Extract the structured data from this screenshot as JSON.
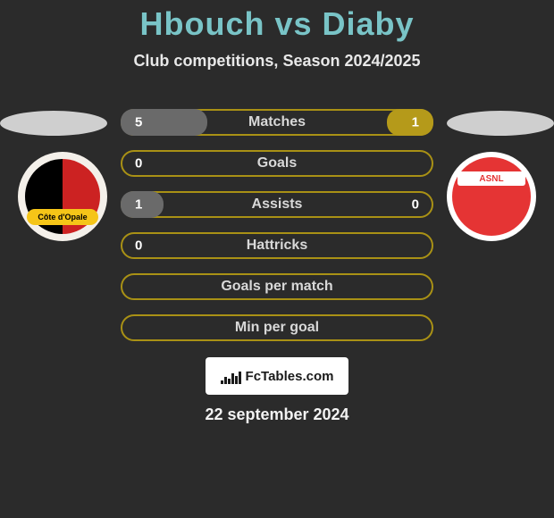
{
  "colors": {
    "background": "#2b2b2b",
    "title": "#79c4c7",
    "platform": "#cfcfcf",
    "row_border": "#a99115",
    "fill_left": "#6a6a6a",
    "fill_right": "#b59a1a"
  },
  "title": "Hbouch vs Diaby",
  "subtitle": "Club competitions, Season 2024/2025",
  "date": "22 september 2024",
  "badge": {
    "text": "FcTables.com",
    "spark_heights": [
      4,
      8,
      6,
      12,
      9,
      14
    ]
  },
  "crest_left": {
    "band_text": "Côte d'Opale"
  },
  "crest_right": {
    "banner_text": "ASNL"
  },
  "rows": [
    {
      "label": "Matches",
      "left": "5",
      "right": "1",
      "fill_left_pct": 28,
      "fill_right_pct": 15
    },
    {
      "label": "Goals",
      "left": "0",
      "right": "",
      "fill_left_pct": 0,
      "fill_right_pct": 0
    },
    {
      "label": "Assists",
      "left": "1",
      "right": "0",
      "fill_left_pct": 14,
      "fill_right_pct": 0
    },
    {
      "label": "Hattricks",
      "left": "0",
      "right": "",
      "fill_left_pct": 0,
      "fill_right_pct": 0
    },
    {
      "label": "Goals per match",
      "left": "",
      "right": "",
      "fill_left_pct": 0,
      "fill_right_pct": 0
    },
    {
      "label": "Min per goal",
      "left": "",
      "right": "",
      "fill_left_pct": 0,
      "fill_right_pct": 0
    }
  ]
}
